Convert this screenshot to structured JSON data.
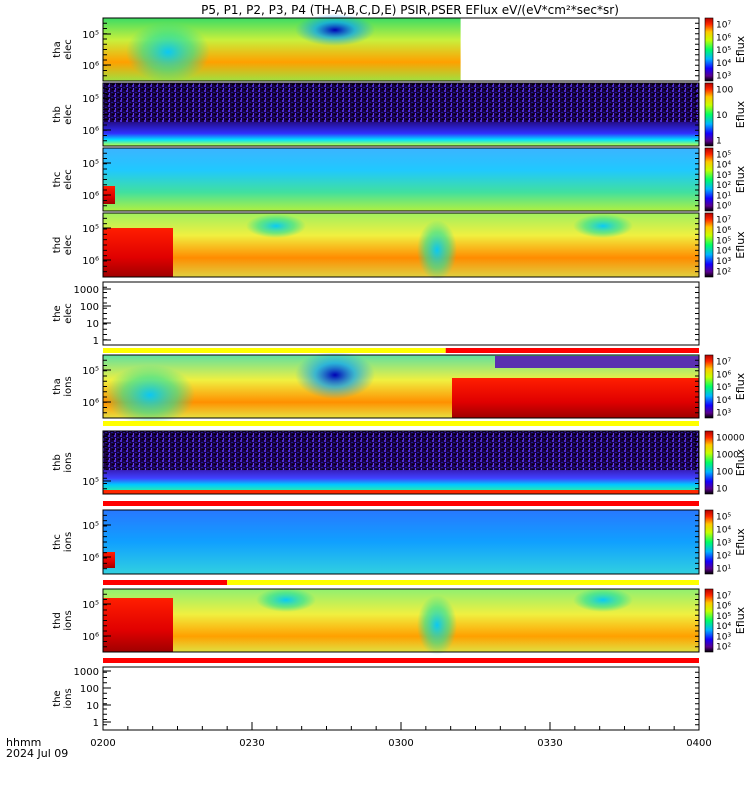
{
  "title": "P5, P1, P2, P3, P4 (TH-A,B,C,D,E) PSIR,PSER EFlux eV/(eV*cm²*sec*sr)",
  "x_axis": {
    "label_line1": "hhmm",
    "label_line2": "2024 Jul 09",
    "ticks": [
      "0200",
      "0230",
      "0300",
      "0330",
      "0400"
    ]
  },
  "colors": {
    "bar_yellow": "#ffff00",
    "bar_red": "#ff0000",
    "bar_dark": "#000000"
  },
  "chart_data": [
    {
      "type": "heatmap",
      "name": "tha-elec",
      "ylabel_line1": "tha",
      "ylabel_line2": "elec",
      "y_ticks": [
        "10⁵",
        "10⁶"
      ],
      "colorbar": {
        "label": "Eflux",
        "ticks": [
          "10⁷",
          "10⁶",
          "10⁵",
          "10⁴",
          "10³"
        ]
      },
      "x_range": [
        "0200",
        "0400"
      ],
      "data_end": "0312"
    },
    {
      "type": "heatmap",
      "name": "thb-elec",
      "ylabel_line1": "thb",
      "ylabel_line2": "elec",
      "y_ticks": [
        "10⁵",
        "10⁶"
      ],
      "colorbar": {
        "label": "Eflux",
        "ticks": [
          "100",
          "10",
          "1"
        ]
      }
    },
    {
      "type": "heatmap",
      "name": "thc-elec",
      "ylabel_line1": "thc",
      "ylabel_line2": "elec",
      "y_ticks": [
        "10⁵",
        "10⁶"
      ],
      "colorbar": {
        "label": "Eflux",
        "ticks": [
          "10⁵",
          "10⁴",
          "10³",
          "10²",
          "10¹",
          "10⁰"
        ]
      }
    },
    {
      "type": "heatmap",
      "name": "thd-elec",
      "ylabel_line1": "thd",
      "ylabel_line2": "elec",
      "y_ticks": [
        "10⁵",
        "10⁶"
      ],
      "colorbar": {
        "label": "Eflux",
        "ticks": [
          "10⁷",
          "10⁶",
          "10⁵",
          "10⁴",
          "10³",
          "10²"
        ]
      }
    },
    {
      "type": "line",
      "name": "the-elec",
      "ylabel_line1": "the",
      "ylabel_line2": "elec",
      "y_ticks": [
        "1000",
        "100",
        "10",
        "1"
      ],
      "flag_bar": {
        "segments": [
          [
            "0200",
            "0309",
            "yellow"
          ],
          [
            "0309",
            "0400",
            "red"
          ]
        ]
      }
    },
    {
      "type": "heatmap",
      "name": "tha-ions",
      "ylabel_line1": "tha",
      "ylabel_line2": "ions",
      "y_ticks": [
        "10⁵",
        "10⁶"
      ],
      "colorbar": {
        "label": "Eflux",
        "ticks": [
          "10⁷",
          "10⁶",
          "10⁵",
          "10⁴",
          "10³"
        ]
      },
      "flag_bar": {
        "segments": [
          [
            "0200",
            "0400",
            "yellow"
          ]
        ]
      }
    },
    {
      "type": "heatmap",
      "name": "thb-ions",
      "ylabel_line1": "thb",
      "ylabel_line2": "ions",
      "y_ticks": [
        "10⁵"
      ],
      "colorbar": {
        "label": "Eflux",
        "ticks": [
          "10000",
          "1000",
          "100",
          "10"
        ]
      },
      "flag_bar": {
        "segments": [
          [
            "0200",
            "0400",
            "red"
          ]
        ]
      }
    },
    {
      "type": "heatmap",
      "name": "thc-ions",
      "ylabel_line1": "thc",
      "ylabel_line2": "ions",
      "y_ticks": [
        "10⁵",
        "10⁶"
      ],
      "colorbar": {
        "label": "Eflux",
        "ticks": [
          "10⁵",
          "10⁴",
          "10³",
          "10²",
          "10¹"
        ]
      },
      "flag_bar": {
        "segments": [
          [
            "0200",
            "0225",
            "red"
          ],
          [
            "0225",
            "0400",
            "yellow"
          ]
        ]
      }
    },
    {
      "type": "heatmap",
      "name": "thd-ions",
      "ylabel_line1": "thd",
      "ylabel_line2": "ions",
      "y_ticks": [
        "10⁵",
        "10⁶"
      ],
      "colorbar": {
        "label": "Eflux",
        "ticks": [
          "10⁷",
          "10⁶",
          "10⁵",
          "10⁴",
          "10³",
          "10²"
        ]
      },
      "flag_bar": {
        "segments": [
          [
            "0200",
            "0400",
            "red"
          ]
        ]
      }
    },
    {
      "type": "line",
      "name": "the-ions",
      "ylabel_line1": "the",
      "ylabel_line2": "ions",
      "y_ticks": [
        "1000",
        "100",
        "10",
        "1"
      ]
    }
  ]
}
